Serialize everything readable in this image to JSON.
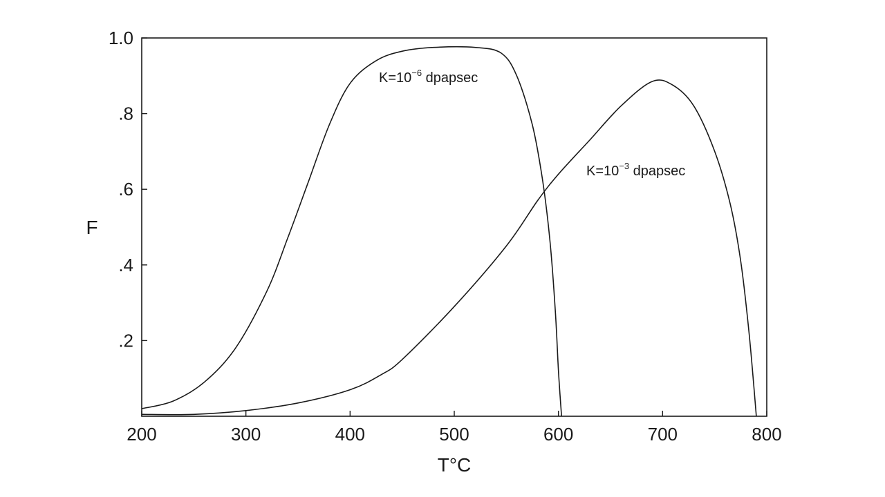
{
  "chart_data": {
    "type": "line",
    "title": "",
    "xlabel": "T°C",
    "ylabel": "F",
    "xlim": [
      200,
      800
    ],
    "ylim": [
      0,
      1.0
    ],
    "xticks": [
      200,
      300,
      400,
      500,
      600,
      700,
      800
    ],
    "xtick_labels": [
      "200",
      "300",
      "400",
      "500",
      "600",
      "700",
      "800"
    ],
    "yticks": [
      0.2,
      0.4,
      0.6,
      0.8,
      1.0
    ],
    "ytick_labels": [
      ".2",
      ".4",
      ".6",
      ".8",
      "1.0"
    ],
    "grid": false,
    "series": [
      {
        "name": "K=10⁻⁶ dpapsec",
        "points": [
          [
            200,
            0.02
          ],
          [
            230,
            0.04
          ],
          [
            260,
            0.09
          ],
          [
            290,
            0.18
          ],
          [
            320,
            0.33
          ],
          [
            340,
            0.47
          ],
          [
            360,
            0.62
          ],
          [
            380,
            0.77
          ],
          [
            400,
            0.88
          ],
          [
            425,
            0.94
          ],
          [
            450,
            0.965
          ],
          [
            480,
            0.975
          ],
          [
            520,
            0.975
          ],
          [
            545,
            0.96
          ],
          [
            560,
            0.9
          ],
          [
            575,
            0.77
          ],
          [
            585,
            0.62
          ],
          [
            592,
            0.46
          ],
          [
            597,
            0.28
          ],
          [
            600,
            0.12
          ],
          [
            603,
            0.0
          ]
        ]
      },
      {
        "name": "K=10⁻³ dpapsec",
        "points": [
          [
            200,
            0.005
          ],
          [
            250,
            0.005
          ],
          [
            300,
            0.015
          ],
          [
            350,
            0.035
          ],
          [
            400,
            0.07
          ],
          [
            430,
            0.11
          ],
          [
            450,
            0.15
          ],
          [
            500,
            0.29
          ],
          [
            550,
            0.45
          ],
          [
            580,
            0.57
          ],
          [
            600,
            0.64
          ],
          [
            630,
            0.73
          ],
          [
            660,
            0.82
          ],
          [
            690,
            0.885
          ],
          [
            710,
            0.875
          ],
          [
            730,
            0.82
          ],
          [
            750,
            0.7
          ],
          [
            765,
            0.56
          ],
          [
            775,
            0.41
          ],
          [
            783,
            0.22
          ],
          [
            790,
            0.0
          ]
        ]
      }
    ],
    "annotations": [
      {
        "base": "K=10",
        "exponent": "−6",
        "unit": " dpapsec",
        "series": 0
      },
      {
        "base": "K=10",
        "exponent": "−3",
        "unit": " dpapsec",
        "series": 1
      }
    ]
  }
}
